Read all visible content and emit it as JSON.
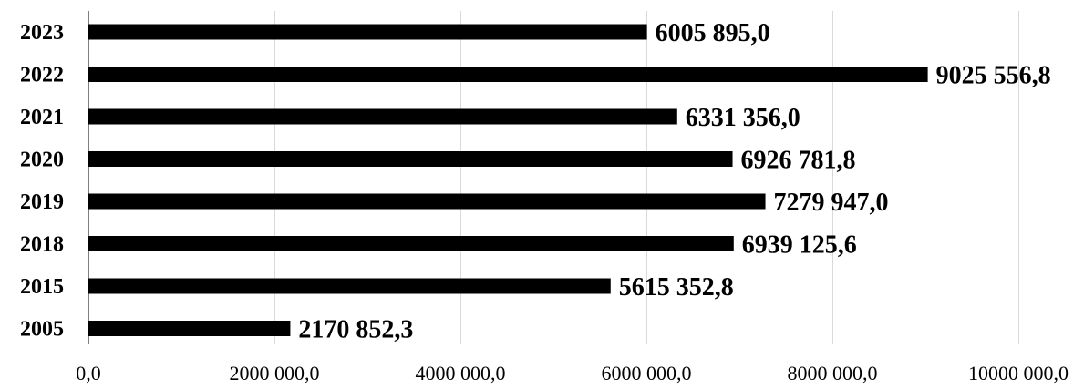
{
  "chart_data": {
    "type": "bar",
    "orientation": "horizontal",
    "categories": [
      "2023",
      "2022",
      "2021",
      "2020",
      "2019",
      "2018",
      "2015",
      "2005"
    ],
    "values": [
      6005895.0,
      9025556.8,
      6331356.0,
      6926781.8,
      7279947.0,
      6939125.6,
      5615352.8,
      2170852.3
    ],
    "data_labels": [
      "6005 895,0",
      "9025 556,8",
      "6331 356,0",
      "6926 781,8",
      "7279 947,0",
      "6939 125,6",
      "5615 352,8",
      "2170 852,3"
    ],
    "x_ticks": [
      0,
      2000000,
      4000000,
      6000000,
      8000000,
      10000000
    ],
    "x_tick_labels": [
      "0,0",
      "2000 000,0",
      "4000 000,0",
      "6000 000,0",
      "8000 000,0",
      "10000 000,0"
    ],
    "xlim": [
      0,
      10000000
    ],
    "title": "",
    "xlabel": "",
    "ylabel": "",
    "grid": "vertical",
    "legend": "none",
    "bar_color": "#000000",
    "grid_color": "#d9d9d9"
  }
}
